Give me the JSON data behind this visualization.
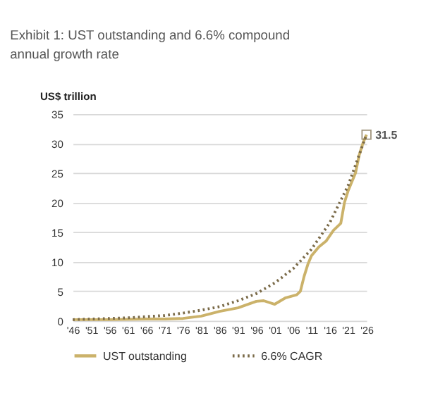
{
  "chart_data": {
    "type": "line",
    "title": "Exhibit 1: UST outstanding and 6.6% compound annual growth rate",
    "ylabel": "US$ trillion",
    "xlim": [
      1946,
      2026
    ],
    "xticks": [
      {
        "value": 1946,
        "label": "'46"
      },
      {
        "value": 1951,
        "label": "'51"
      },
      {
        "value": 1956,
        "label": "'56"
      },
      {
        "value": 1961,
        "label": "'61"
      },
      {
        "value": 1966,
        "label": "'66"
      },
      {
        "value": 1971,
        "label": "'71"
      },
      {
        "value": 1976,
        "label": "'76"
      },
      {
        "value": 1981,
        "label": "'81"
      },
      {
        "value": 1986,
        "label": "'86"
      },
      {
        "value": 1991,
        "label": "'91"
      },
      {
        "value": 1996,
        "label": "'96"
      },
      {
        "value": 2001,
        "label": "'01"
      },
      {
        "value": 2006,
        "label": "'06"
      },
      {
        "value": 2011,
        "label": "'11"
      },
      {
        "value": 2016,
        "label": "'16"
      },
      {
        "value": 2021,
        "label": "'21"
      },
      {
        "value": 2026,
        "label": "'26"
      }
    ],
    "ylim": [
      0,
      35
    ],
    "yticks": [
      0,
      5,
      10,
      15,
      20,
      25,
      30,
      35
    ],
    "grid": "y",
    "legend": "bottom",
    "series": [
      {
        "name": "UST outstanding",
        "color": "#cbb26a",
        "line_style": "solid",
        "x": [
          1946,
          1956,
          1966,
          1971,
          1976,
          1981,
          1986,
          1991,
          1996,
          1998,
          2001,
          2004,
          2007,
          2008,
          2009,
          2010,
          2011,
          2013,
          2015,
          2017,
          2019,
          2020,
          2021,
          2022,
          2023,
          2024,
          2025,
          2026
        ],
        "values": [
          0.2,
          0.2,
          0.3,
          0.3,
          0.4,
          0.8,
          1.6,
          2.2,
          3.3,
          3.4,
          2.8,
          3.9,
          4.4,
          5,
          7.5,
          9.5,
          11,
          12.5,
          13.5,
          15.3,
          16.5,
          20,
          22,
          23.5,
          25,
          28,
          30,
          31.5
        ]
      },
      {
        "name": "6.6% CAGR",
        "color": "#7a6a48",
        "line_style": "dotted",
        "x": [
          1946,
          1951,
          1956,
          1961,
          1966,
          1971,
          1976,
          1981,
          1986,
          1991,
          1996,
          2001,
          2006,
          2011,
          2016,
          2021,
          2026
        ],
        "values": [
          0.2,
          0.3,
          0.4,
          0.5,
          0.7,
          0.9,
          1.3,
          1.8,
          2.4,
          3.4,
          4.6,
          6.4,
          8.8,
          12.1,
          16.6,
          22.9,
          31.5
        ]
      }
    ],
    "annotations": [
      {
        "text": "31.5",
        "x": 2026,
        "y": 31.5
      }
    ]
  }
}
